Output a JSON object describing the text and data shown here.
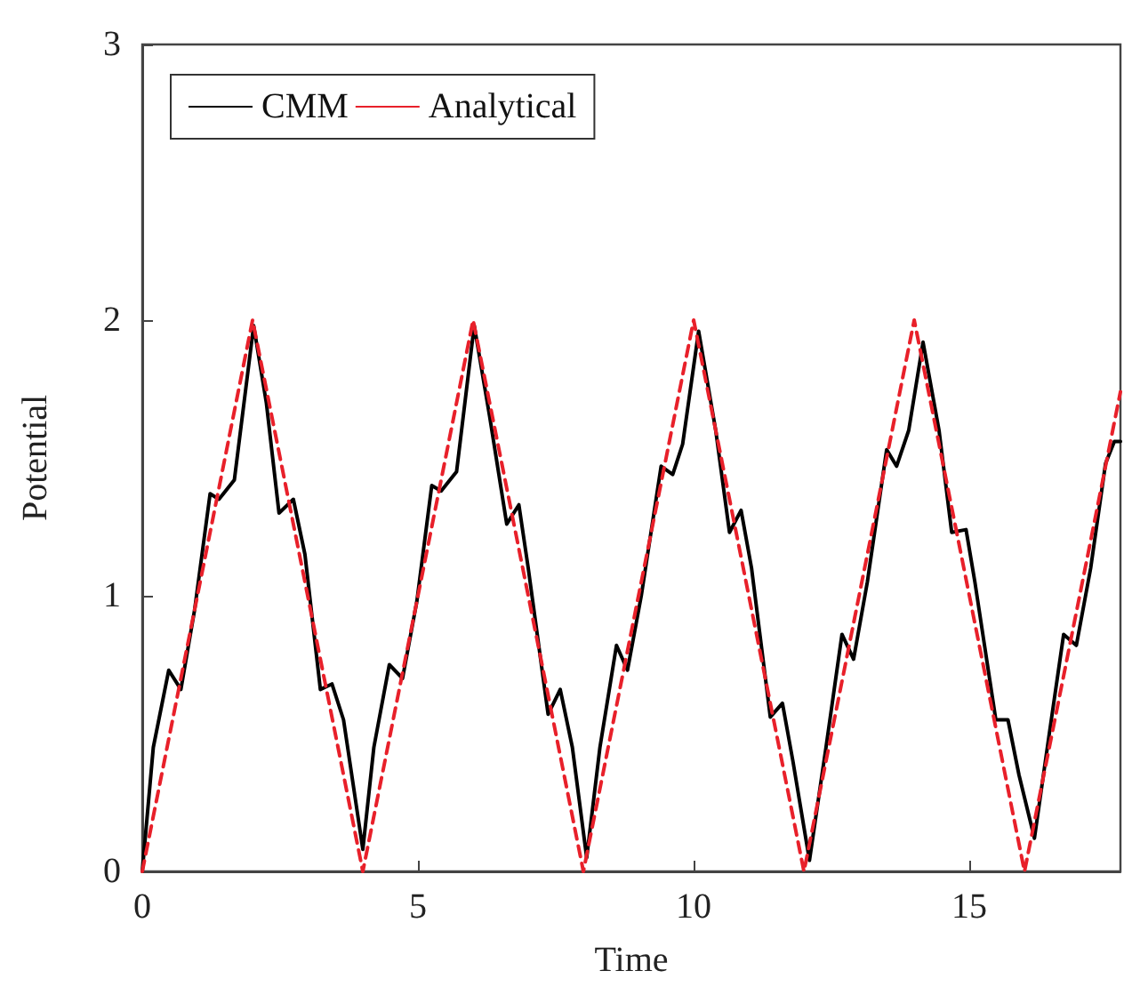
{
  "chart_data": {
    "type": "line",
    "xlabel": "Time",
    "ylabel": "Potential",
    "xlim": [
      0,
      17.74
    ],
    "xticks": [
      0,
      5,
      10,
      15
    ],
    "ylim": [
      0,
      3
    ],
    "yticks": [
      0,
      1,
      2,
      3
    ],
    "grid": false,
    "legend": "top left",
    "marker": "none",
    "series": [
      {
        "name": "CMM",
        "color": "#000000",
        "line_style": "solid",
        "x": [
          0,
          0.2,
          0.48,
          0.7,
          0.95,
          1.23,
          1.39,
          1.67,
          2.02,
          2.25,
          2.48,
          2.74,
          2.95,
          3.23,
          3.44,
          3.65,
          4.0,
          4.2,
          4.48,
          4.72,
          4.98,
          5.25,
          5.42,
          5.7,
          6.02,
          6.3,
          6.61,
          6.83,
          7.0,
          7.36,
          7.58,
          7.8,
          8.06,
          8.3,
          8.6,
          8.8,
          9.05,
          9.41,
          9.62,
          9.8,
          10.09,
          10.4,
          10.65,
          10.86,
          11.05,
          11.39,
          11.61,
          11.8,
          12.1,
          12.4,
          12.69,
          12.9,
          13.15,
          13.5,
          13.68,
          13.9,
          14.16,
          14.45,
          14.68,
          14.94,
          15.1,
          15.48,
          15.7,
          15.9,
          16.18,
          16.45,
          16.71,
          16.94,
          17.2,
          17.47,
          17.63,
          17.74
        ],
        "values": [
          0,
          0.45,
          0.73,
          0.66,
          0.95,
          1.37,
          1.35,
          1.42,
          1.98,
          1.7,
          1.3,
          1.35,
          1.15,
          0.66,
          0.68,
          0.55,
          0.08,
          0.45,
          0.75,
          0.7,
          0.98,
          1.4,
          1.38,
          1.45,
          1.98,
          1.65,
          1.26,
          1.33,
          1.1,
          0.57,
          0.66,
          0.45,
          0.05,
          0.45,
          0.82,
          0.73,
          1.0,
          1.47,
          1.44,
          1.55,
          1.96,
          1.6,
          1.23,
          1.31,
          1.1,
          0.56,
          0.61,
          0.4,
          0.04,
          0.45,
          0.86,
          0.77,
          1.05,
          1.53,
          1.47,
          1.6,
          1.92,
          1.6,
          1.23,
          1.24,
          1.05,
          0.55,
          0.55,
          0.35,
          0.12,
          0.5,
          0.86,
          0.82,
          1.1,
          1.48,
          1.56,
          1.56
        ]
      },
      {
        "name": "Analytical",
        "color": "#e8202a",
        "line_style": "dashed",
        "x": [
          0,
          2,
          4,
          6,
          8,
          10,
          12,
          14,
          16,
          17.74
        ],
        "values": [
          0,
          2,
          0,
          2,
          0,
          2,
          0,
          2,
          0,
          1.74
        ]
      }
    ]
  }
}
